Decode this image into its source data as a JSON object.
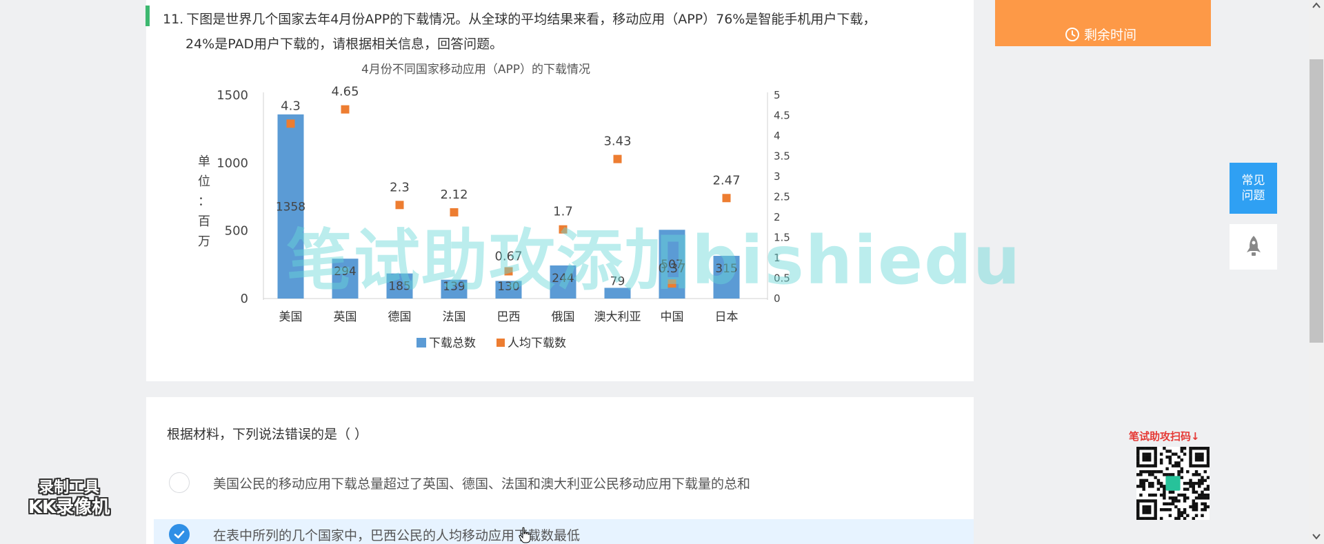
{
  "question": {
    "number": "11.",
    "text_line1": "下图是世界几个国家去年4月份APP的下载情况。从全球的平均结果来看，移动应用（APP）76%是智能手机用户下载，",
    "text_line2": "24%是PAD用户下载的，请根据相关信息，回答问题。"
  },
  "chart_data": {
    "type": "bar",
    "title": "4月份不同国家移动应用（APP）的下载情况",
    "categories": [
      "美国",
      "英国",
      "德国",
      "法国",
      "巴西",
      "俄国",
      "澳大利亚",
      "中国",
      "日本"
    ],
    "series": [
      {
        "name": "下载总数",
        "type": "bar",
        "axis": "left",
        "values": [
          1358,
          294,
          185,
          139,
          130,
          244,
          79,
          507,
          315
        ],
        "color": "#5b9bd5"
      },
      {
        "name": "人均下载数",
        "type": "scatter",
        "axis": "right",
        "values": [
          4.3,
          4.65,
          2.3,
          2.12,
          0.67,
          1.7,
          3.43,
          0.37,
          2.47
        ],
        "color": "#ed7d31"
      }
    ],
    "ylabel": "单位：百万",
    "ylim": [
      0,
      1500
    ],
    "y_ticks": [
      "0",
      "500",
      "1000",
      "1500"
    ],
    "y2lim": [
      0,
      5
    ],
    "y2_ticks": [
      "0",
      "0.5",
      "1",
      "1.5",
      "2",
      "2.5",
      "3",
      "3.5",
      "4",
      "4.5",
      "5"
    ],
    "legend_position": "bottom",
    "grid": false
  },
  "watermark": "笔试助攻添加bishiedu",
  "answer": {
    "prompt": "根据材料，下列说法错误的是（ ）",
    "options": [
      {
        "text": "美国公民的移动应用下载总量超过了英国、德国、法国和澳大利亚公民移动应用下载量的总和",
        "selected": false
      },
      {
        "text": "在表中所列的几个国家中，巴西公民的人均移动应用下载数最低",
        "selected": true
      }
    ]
  },
  "sidebar": {
    "timer_label": "剩余时间",
    "faq_label_1": "常见",
    "faq_label_2": "问题",
    "scan_text": "笔试助攻扫码↓"
  },
  "recorder": {
    "line1": "录制工具",
    "line2": "KK录像机"
  },
  "colors": {
    "accent_green": "#3db870",
    "timer_orange": "#fd9947",
    "faq_blue": "#2fa0f3",
    "selected_bg": "#e7f3ff",
    "check_blue": "#2f8fe6"
  }
}
